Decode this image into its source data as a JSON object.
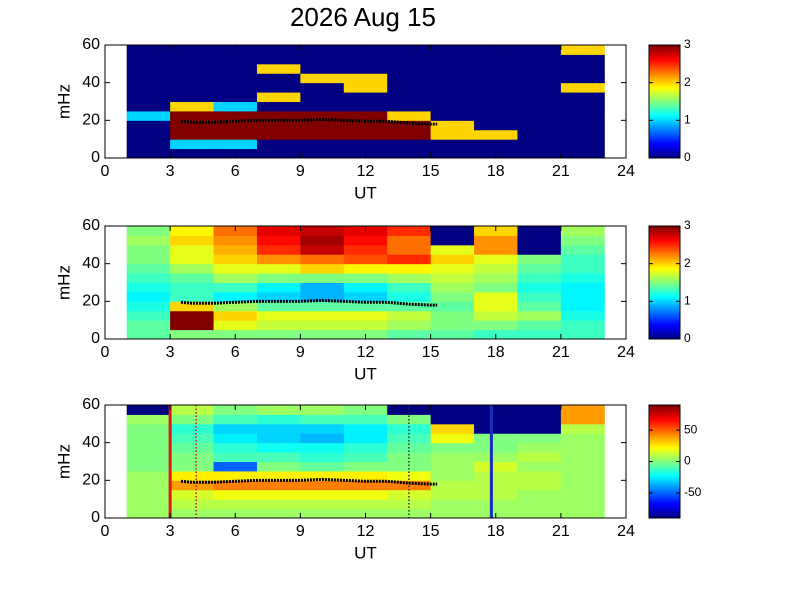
{
  "title": "2026 Aug 15",
  "chart_data": [
    {
      "type": "heatmap",
      "xlabel": "UT",
      "ylabel": "mHz",
      "xlim": [
        0,
        24
      ],
      "xticks": [
        0,
        3,
        6,
        9,
        12,
        15,
        18,
        21,
        24
      ],
      "ylim": [
        0,
        60
      ],
      "yticks": [
        0,
        20,
        40,
        60
      ],
      "x_bins": [
        1,
        3,
        5,
        7,
        9,
        11,
        13,
        15,
        17,
        19,
        21,
        23
      ],
      "y_bins": [
        0,
        5,
        10,
        15,
        20,
        25,
        30,
        35,
        40,
        45,
        50,
        55,
        60
      ],
      "z": [
        [
          0,
          0,
          0,
          0,
          0,
          0,
          0,
          0,
          0,
          0,
          0
        ],
        [
          0,
          1,
          1,
          0,
          0,
          0,
          0,
          0,
          0,
          0,
          0
        ],
        [
          0,
          3,
          3,
          3,
          3,
          3,
          3,
          2,
          2,
          0,
          0
        ],
        [
          0,
          3,
          3,
          3,
          3,
          3,
          3,
          2,
          0,
          0,
          0
        ],
        [
          1,
          3,
          3,
          3,
          3,
          3,
          2,
          0,
          0,
          0,
          0
        ],
        [
          0,
          2,
          1,
          0,
          0,
          0,
          0,
          0,
          0,
          0,
          0
        ],
        [
          0,
          0,
          0,
          2,
          0,
          0,
          0,
          0,
          0,
          0,
          0
        ],
        [
          0,
          0,
          0,
          0,
          0,
          2,
          0,
          0,
          0,
          0,
          2
        ],
        [
          0,
          0,
          0,
          0,
          2,
          2,
          0,
          0,
          0,
          0,
          0
        ],
        [
          0,
          0,
          0,
          2,
          0,
          0,
          0,
          0,
          0,
          0,
          0
        ],
        [
          0,
          0,
          0,
          0,
          0,
          0,
          0,
          0,
          0,
          0,
          0
        ],
        [
          0,
          0,
          0,
          0,
          0,
          0,
          0,
          0,
          0,
          0,
          2
        ]
      ],
      "clim": [
        0,
        3
      ],
      "cticks": [
        0,
        1,
        2,
        3
      ],
      "line": {
        "color": "#000000",
        "x": [
          3.5,
          4,
          5,
          6,
          7,
          8,
          9,
          10,
          11,
          12,
          13,
          14,
          15,
          15.3
        ],
        "y": [
          19.5,
          19,
          19,
          19.5,
          20,
          20,
          20,
          20.5,
          20,
          19.5,
          19.5,
          18.5,
          18,
          18
        ]
      }
    },
    {
      "type": "heatmap",
      "xlabel": "UT",
      "ylabel": "mHz",
      "xlim": [
        0,
        24
      ],
      "xticks": [
        0,
        3,
        6,
        9,
        12,
        15,
        18,
        21,
        24
      ],
      "ylim": [
        0,
        60
      ],
      "yticks": [
        0,
        20,
        40,
        60
      ],
      "x_bins": [
        1,
        3,
        5,
        7,
        9,
        11,
        13,
        15,
        17,
        19,
        21,
        23
      ],
      "y_bins": [
        0,
        5,
        10,
        15,
        20,
        25,
        30,
        35,
        40,
        45,
        50,
        55,
        60
      ],
      "z": [
        [
          1.4,
          1.5,
          1.5,
          1.5,
          1.5,
          1.5,
          1.4,
          1.4,
          1.3,
          1.3,
          1.3
        ],
        [
          1.4,
          3,
          1.8,
          1.7,
          1.7,
          1.7,
          1.6,
          1.5,
          1.5,
          1.4,
          1.3
        ],
        [
          1.3,
          3,
          2,
          1.8,
          1.8,
          1.8,
          1.7,
          1.5,
          1.7,
          1.6,
          1.2
        ],
        [
          1.2,
          2,
          1.6,
          1.4,
          1.4,
          1.4,
          1.4,
          1.4,
          1.8,
          1.4,
          1.1
        ],
        [
          1.1,
          1.3,
          1.1,
          1.0,
          0.9,
          1.0,
          1.2,
          1.5,
          1.8,
          1.3,
          1.1
        ],
        [
          1.2,
          1.3,
          1.3,
          1.1,
          0.9,
          1.1,
          1.3,
          1.6,
          1.5,
          1.2,
          1.1
        ],
        [
          1.3,
          1.4,
          1.6,
          1.5,
          1.5,
          1.5,
          1.6,
          1.7,
          1.6,
          1.3,
          1.2
        ],
        [
          1.4,
          1.6,
          1.8,
          1.8,
          2.0,
          1.9,
          1.9,
          1.8,
          1.7,
          1.4,
          1.3
        ],
        [
          1.5,
          1.8,
          2.0,
          2.2,
          2.3,
          2.4,
          2.5,
          2.0,
          1.8,
          1.5,
          1.3
        ],
        [
          1.5,
          1.8,
          2.1,
          2.5,
          2.8,
          2.5,
          2.3,
          1.8,
          2.2,
          0,
          1.4
        ],
        [
          1.6,
          2.0,
          2.2,
          2.6,
          2.9,
          2.6,
          2.3,
          0,
          2.2,
          0,
          1.5
        ],
        [
          1.5,
          1.9,
          2.3,
          2.7,
          2.8,
          2.7,
          2.5,
          0,
          2.0,
          0,
          1.6
        ]
      ],
      "clim": [
        0,
        3
      ],
      "cticks": [
        0,
        1,
        2,
        3
      ],
      "line": {
        "color": "#000000",
        "x": [
          3.5,
          4,
          5,
          6,
          7,
          8,
          9,
          10,
          11,
          12,
          13,
          14,
          15,
          15.3
        ],
        "y": [
          19.5,
          19,
          19,
          19.5,
          20,
          20,
          20,
          20.5,
          20,
          19.5,
          19.5,
          18.5,
          18,
          18
        ]
      }
    },
    {
      "type": "heatmap",
      "xlabel": "UT",
      "ylabel": "mHz",
      "xlim": [
        0,
        24
      ],
      "xticks": [
        0,
        3,
        6,
        9,
        12,
        15,
        18,
        21,
        24
      ],
      "ylim": [
        0,
        60
      ],
      "yticks": [
        0,
        20,
        40,
        60
      ],
      "x_bins": [
        1,
        3,
        5,
        7,
        9,
        11,
        13,
        15,
        17,
        19,
        21,
        23
      ],
      "y_bins": [
        0,
        5,
        10,
        15,
        20,
        25,
        30,
        35,
        40,
        45,
        50,
        55,
        60
      ],
      "z": [
        [
          5,
          5,
          5,
          5,
          5,
          5,
          5,
          5,
          5,
          5,
          5
        ],
        [
          5,
          10,
          10,
          10,
          10,
          10,
          10,
          5,
          5,
          5,
          5
        ],
        [
          5,
          15,
          20,
          20,
          20,
          20,
          15,
          10,
          10,
          5,
          5
        ],
        [
          5,
          40,
          45,
          45,
          45,
          45,
          45,
          10,
          10,
          10,
          5
        ],
        [
          5,
          25,
          25,
          25,
          25,
          25,
          20,
          5,
          10,
          10,
          5
        ],
        [
          0,
          0,
          -50,
          0,
          -5,
          0,
          0,
          5,
          15,
          5,
          5
        ],
        [
          0,
          0,
          -10,
          -10,
          -15,
          -10,
          0,
          5,
          5,
          10,
          5
        ],
        [
          0,
          -5,
          -15,
          -20,
          -20,
          -15,
          -5,
          0,
          0,
          5,
          5
        ],
        [
          0,
          -10,
          -25,
          -30,
          -35,
          -25,
          -10,
          20,
          0,
          0,
          5
        ],
        [
          0,
          -15,
          -30,
          -30,
          -30,
          -25,
          -15,
          30,
          -90,
          -90,
          10
        ],
        [
          5,
          0,
          -10,
          -15,
          -10,
          -10,
          0,
          -90,
          -90,
          -90,
          40
        ],
        [
          -90,
          10,
          0,
          5,
          5,
          0,
          -90,
          -90,
          -90,
          -90,
          40
        ]
      ],
      "clim": [
        -90,
        90
      ],
      "cticks": [
        -50,
        0,
        50
      ],
      "line": {
        "color": "#000000",
        "x": [
          3.5,
          4,
          5,
          6,
          7,
          8,
          9,
          10,
          11,
          12,
          13,
          14,
          15,
          15.3
        ],
        "y": [
          19.5,
          19,
          19,
          19.5,
          20,
          20,
          20,
          20.5,
          20,
          19.5,
          19.5,
          18.5,
          18,
          18
        ]
      },
      "vlines": [
        {
          "x": 3,
          "color": "#e01818",
          "style": "solid"
        },
        {
          "x": 4.2,
          "color": "#c02020",
          "style": "dotted"
        },
        {
          "x": 14,
          "color": "#303030",
          "style": "dotted"
        },
        {
          "x": 17.8,
          "color": "#1a2fc0",
          "style": "solid"
        }
      ]
    }
  ]
}
